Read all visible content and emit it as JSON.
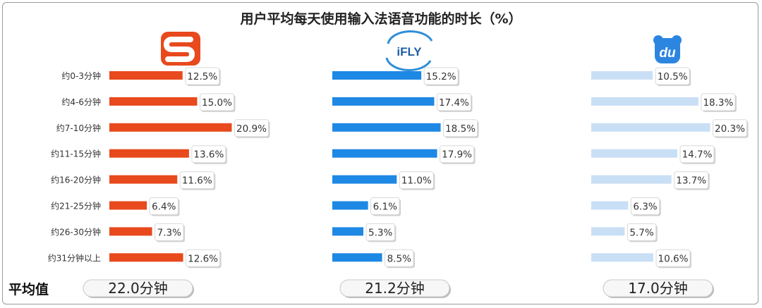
{
  "chart_data": {
    "type": "bar",
    "orientation": "horizontal",
    "title": "用户平均每天使用输入法语音功能的时长（%）",
    "categories": [
      "约0-3分钟",
      "约4-6分钟",
      "约7-10分钟",
      "约11-15分钟",
      "约16-20分钟",
      "约21-25分钟",
      "约26-30分钟",
      "约31分钟以上"
    ],
    "series": [
      {
        "logo": "sogou-logo",
        "color": "#e8491d",
        "values": [
          12.5,
          15.0,
          20.9,
          13.6,
          11.6,
          6.4,
          7.3,
          12.6
        ],
        "average": "22.0分钟"
      },
      {
        "logo": "ifly-logo",
        "logo_text": "iFLY",
        "color": "#1e88e5",
        "values": [
          15.2,
          17.4,
          18.5,
          17.9,
          11.0,
          6.1,
          5.3,
          8.5
        ],
        "average": "21.2分钟"
      },
      {
        "logo": "baidu-logo",
        "logo_text": "du",
        "color": "#c9dff5",
        "values": [
          10.5,
          18.3,
          20.3,
          14.7,
          13.7,
          6.3,
          5.7,
          10.6
        ],
        "average": "17.0分钟"
      }
    ],
    "value_suffix": "%",
    "average_label": "平均值",
    "legend": "none",
    "grid": false
  }
}
